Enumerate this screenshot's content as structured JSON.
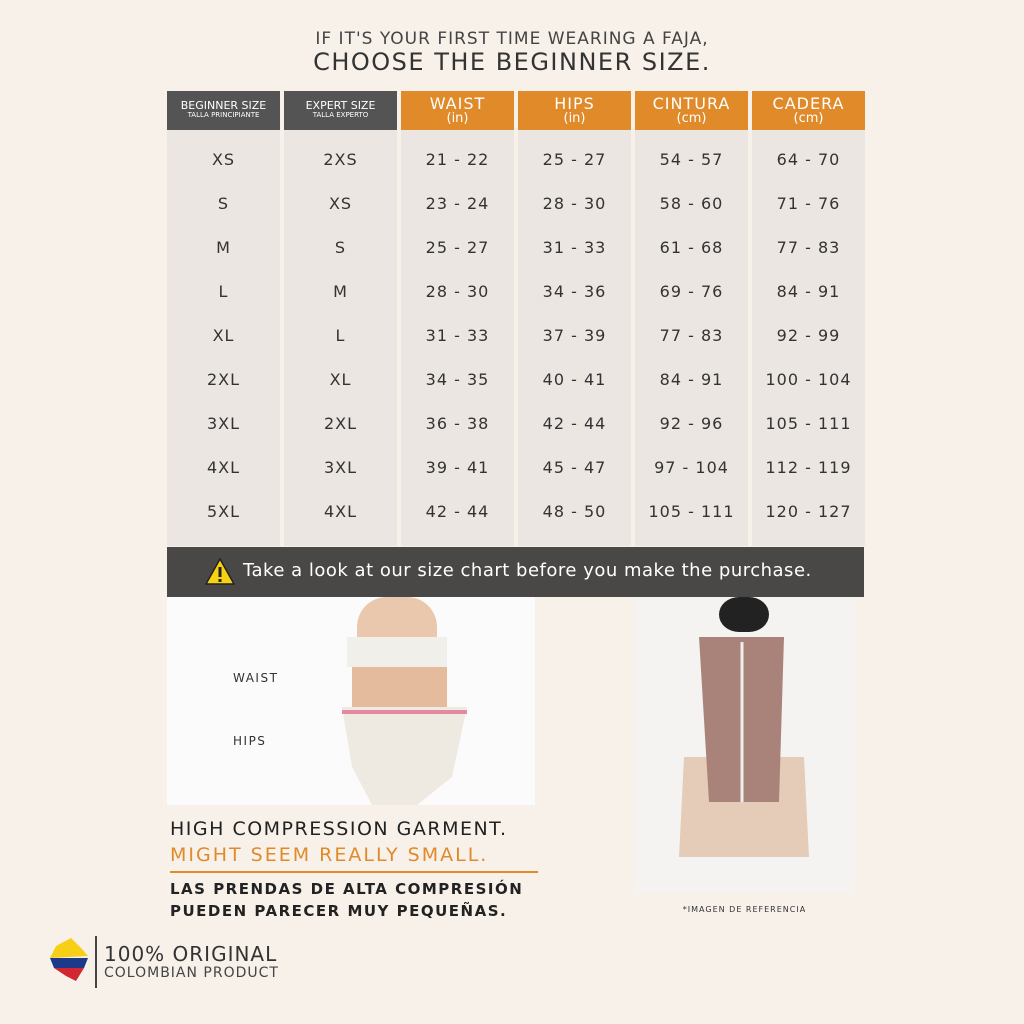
{
  "header": {
    "line1": "IF IT'S YOUR FIRST TIME WEARING A FAJA,",
    "line2": "CHOOSE THE BEGINNER SIZE."
  },
  "table": {
    "columns": [
      {
        "label": "BEGINNER SIZE",
        "sub": "TALLA PRINCIPIANTE"
      },
      {
        "label": "EXPERT SIZE",
        "sub": "TALLA EXPERTO"
      },
      {
        "label": "WAIST",
        "sub": "(in)"
      },
      {
        "label": "HIPS",
        "sub": "(in)"
      },
      {
        "label": "CINTURA",
        "sub": "(cm)"
      },
      {
        "label": "CADERA",
        "sub": "(cm)"
      }
    ],
    "rows": [
      [
        "XS",
        "2XS",
        "21 - 22",
        "25 - 27",
        "54 - 57",
        "64 - 70"
      ],
      [
        "S",
        "XS",
        "23 - 24",
        "28 - 30",
        "58 - 60",
        "71 - 76"
      ],
      [
        "M",
        "S",
        "25 - 27",
        "31 - 33",
        "61 - 68",
        "77 - 83"
      ],
      [
        "L",
        "M",
        "28 - 30",
        "34 - 36",
        "69 - 76",
        "84 - 91"
      ],
      [
        "XL",
        "L",
        "31 - 33",
        "37 - 39",
        "77 - 83",
        "92 - 99"
      ],
      [
        "2XL",
        "XL",
        "34 - 35",
        "40 - 41",
        "84 - 91",
        "100 - 104"
      ],
      [
        "3XL",
        "2XL",
        "36 - 38",
        "42 - 44",
        "92 - 96",
        "105 - 111"
      ],
      [
        "4XL",
        "3XL",
        "39 - 41",
        "45 - 47",
        "97 - 104",
        "112 - 119"
      ],
      [
        "5XL",
        "4XL",
        "42 - 44",
        "48 - 50",
        "105 - 111",
        "120 - 127"
      ]
    ]
  },
  "notice": "Take a look at our size chart before you make the purchase.",
  "photo_labels": {
    "waist": "WAIST",
    "hips": "HIPS"
  },
  "warning": {
    "line1": "HIGH COMPRESSION GARMENT.",
    "line2": "MIGHT SEEM REALLY SMALL.",
    "line3": "LAS PRENDAS DE ALTA COMPRESIÓN",
    "line4": "PUEDEN  PARECER  MUY  PEQUEÑAS."
  },
  "reference_note": "*IMAGEN DE REFERENCIA",
  "brand": {
    "line1": "100% ORIGINAL",
    "line2": "COLOMBIAN PRODUCT"
  }
}
